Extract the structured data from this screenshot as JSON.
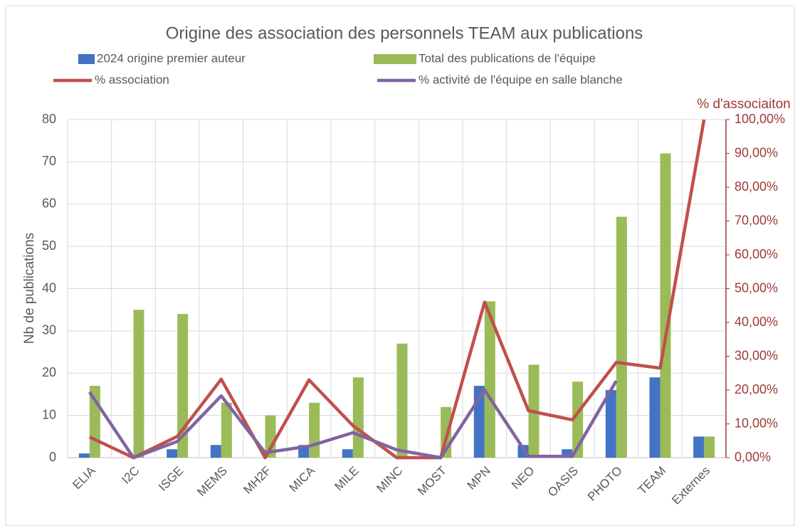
{
  "chart_data": {
    "type": "bar-line",
    "title": "Origine des association des personnels TEAM aux publications",
    "ylabel": "Nb de publications",
    "y2label": "% d'associaiton",
    "categories": [
      "ELIA",
      "I2C",
      "ISGE",
      "MEMS",
      "MH2F",
      "MICA",
      "MILE",
      "MINC",
      "MOST",
      "MPN",
      "NEO",
      "OASIS",
      "PHOTO",
      "TEAM",
      "Externes"
    ],
    "series": [
      {
        "name": "2024 origine premier auteur",
        "type": "bar",
        "color": "#4472c4",
        "values": [
          1,
          0,
          2,
          3,
          0,
          3,
          2,
          0,
          0,
          17,
          3,
          2,
          16,
          19,
          5
        ]
      },
      {
        "name": "Total des publications de l'équipe",
        "type": "bar",
        "color": "#9bbb59",
        "values": [
          17,
          35,
          34,
          13,
          10,
          13,
          19,
          27,
          12,
          37,
          22,
          18,
          57,
          72,
          5
        ]
      },
      {
        "name": "% association",
        "type": "line",
        "axis": "y2",
        "color": "#c0504d",
        "values": [
          6.1,
          0,
          6.3,
          23.2,
          0,
          23,
          9.5,
          0,
          0,
          46,
          13.9,
          11.2,
          28.2,
          26.5,
          100
        ]
      },
      {
        "name": "% activité de l'équipe en salle blanche",
        "type": "line",
        "axis": "y2",
        "color": "#8064a2",
        "values": [
          19.4,
          0,
          4.8,
          18.3,
          1.5,
          3.4,
          7.4,
          2.3,
          0,
          20,
          0.4,
          0.4,
          22.7,
          null,
          null
        ]
      }
    ],
    "ylim": [
      0,
      80
    ],
    "yticks": [
      0,
      10,
      20,
      30,
      40,
      50,
      60,
      70,
      80
    ],
    "y2lim": [
      0,
      100
    ],
    "y2ticks": [
      {
        "value": 0,
        "label": "0,00%"
      },
      {
        "value": 10,
        "label": "10,00%"
      },
      {
        "value": 20,
        "label": "20,00%"
      },
      {
        "value": 30,
        "label": "30,00%"
      },
      {
        "value": 40,
        "label": "40,00%"
      },
      {
        "value": 50,
        "label": "50,00%"
      },
      {
        "value": 60,
        "label": "60,00%"
      },
      {
        "value": 70,
        "label": "70,00%"
      },
      {
        "value": 80,
        "label": "80,00%"
      },
      {
        "value": 90,
        "label": "90,00%"
      },
      {
        "value": 100,
        "label": "100,00%"
      }
    ],
    "grid": true
  }
}
